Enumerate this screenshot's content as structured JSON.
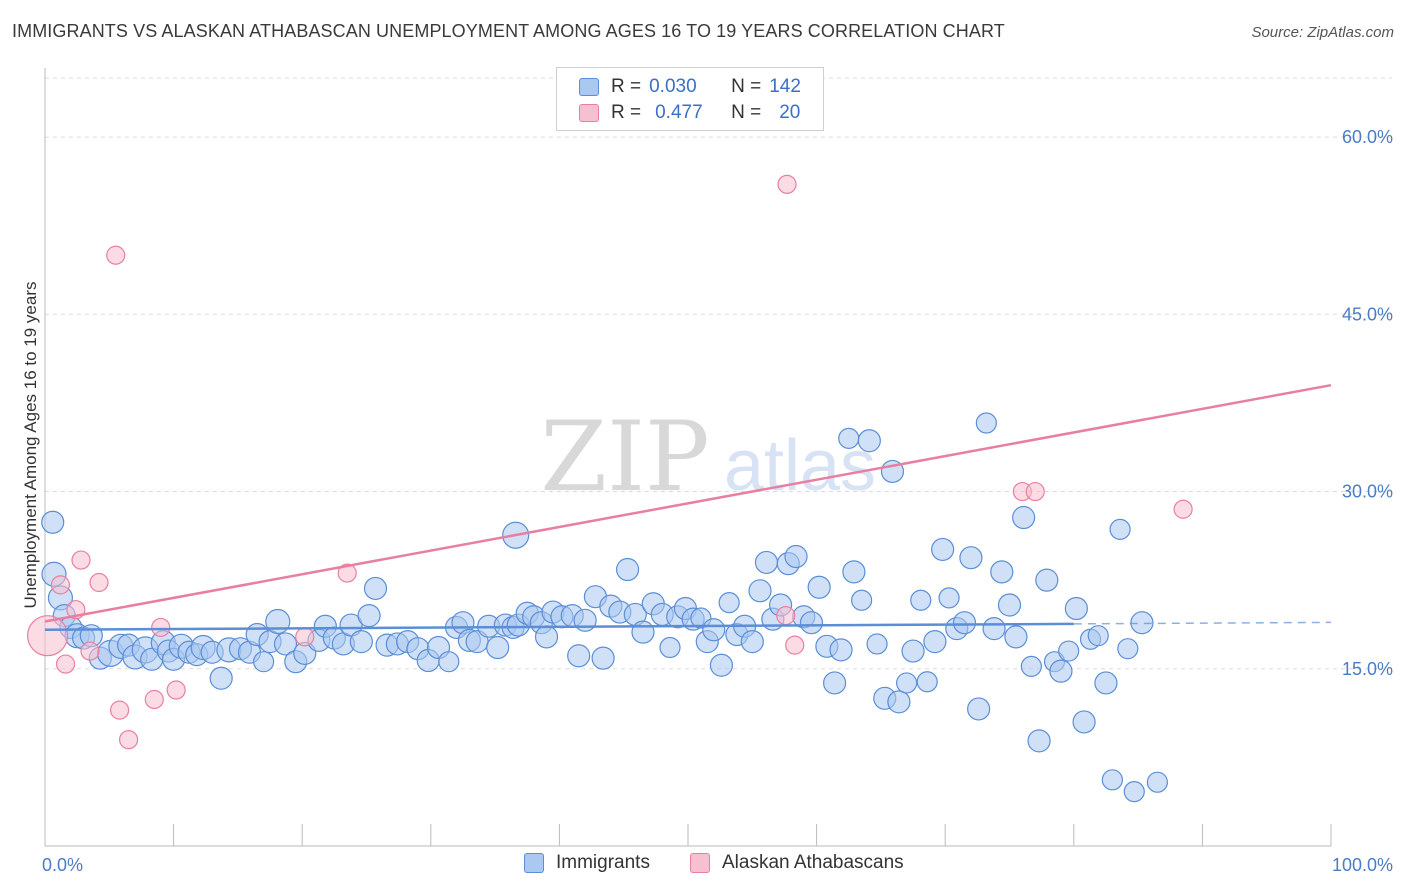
{
  "header": {
    "title": "IMMIGRANTS VS ALASKAN ATHABASCAN UNEMPLOYMENT AMONG AGES 16 TO 19 YEARS CORRELATION CHART",
    "source": "Source: ZipAtlas.com"
  },
  "watermark": {
    "zip": "ZIP",
    "atlas": "atlas"
  },
  "legend": {
    "rows": [
      {
        "r_label": "R =",
        "r_value": "0.030",
        "n_label": "N =",
        "n_value": "142",
        "color": "#aac8f0",
        "border": "#5b8ed6"
      },
      {
        "r_label": "R =",
        "r_value": "0.477",
        "n_label": "N =",
        "n_value": "20",
        "color": "#f7c0d0",
        "border": "#e87fa0"
      }
    ]
  },
  "bottom_legend": {
    "items": [
      {
        "label": "Immigrants",
        "color": "#aac8f0",
        "border": "#5b8ed6"
      },
      {
        "label": "Alaskan Athabascans",
        "color": "#f7c0d0",
        "border": "#e87fa0"
      }
    ]
  },
  "chart_data": {
    "type": "scatter",
    "title": "IMMIGRANTS VS ALASKAN ATHABASCAN UNEMPLOYMENT AMONG AGES 16 TO 19 YEARS CORRELATION CHART",
    "xlabel": "",
    "ylabel": "Unemployment Among Ages 16 to 19 years",
    "xlim": [
      0,
      100
    ],
    "ylim": [
      0,
      65
    ],
    "x_tick_labels": [
      "0.0%",
      "100.0%"
    ],
    "y_ticks": [
      15,
      30,
      45,
      60
    ],
    "y_tick_labels": [
      "15.0%",
      "30.0%",
      "45.0%",
      "60.0%"
    ],
    "grid": "horizontal dashed",
    "legend_position": "top-center",
    "series": [
      {
        "name": "Immigrants",
        "color": "#5b8ed6",
        "fill": "#aac8f0",
        "trend": {
          "x": [
            0,
            80
          ],
          "y": [
            18.3,
            18.8
          ],
          "dashed_extension_to": 100
        },
        "points": [
          [
            0.6,
            27.4
          ],
          [
            0.7,
            23
          ],
          [
            1.2,
            21
          ],
          [
            1.5,
            19.5
          ],
          [
            2,
            18.5
          ],
          [
            2.5,
            17.8
          ],
          [
            3,
            17.6
          ],
          [
            3.6,
            17.8
          ],
          [
            4.3,
            15.9
          ],
          [
            5.1,
            16.3
          ],
          [
            5.9,
            16.9
          ],
          [
            6.5,
            17
          ],
          [
            7,
            16
          ],
          [
            7.8,
            16.6
          ],
          [
            8.3,
            15.8
          ],
          [
            9.2,
            17.2
          ],
          [
            9.6,
            16.5
          ],
          [
            10,
            15.8
          ],
          [
            10.6,
            16.9
          ],
          [
            11.2,
            16.4
          ],
          [
            11.8,
            16.2
          ],
          [
            12.3,
            16.8
          ],
          [
            13,
            16.4
          ],
          [
            13.7,
            14.2
          ],
          [
            14.3,
            16.6
          ],
          [
            15.2,
            16.7
          ],
          [
            15.9,
            16.4
          ],
          [
            16.5,
            17.9
          ],
          [
            17,
            15.6
          ],
          [
            17.5,
            17.3
          ],
          [
            18.1,
            19
          ],
          [
            18.7,
            17.1
          ],
          [
            19.5,
            15.6
          ],
          [
            20.2,
            16.3
          ],
          [
            21.3,
            17.4
          ],
          [
            21.8,
            18.6
          ],
          [
            22.5,
            17.6
          ],
          [
            23.2,
            17.1
          ],
          [
            23.8,
            18.7
          ],
          [
            24.6,
            17.3
          ],
          [
            25.2,
            19.5
          ],
          [
            25.7,
            21.8
          ],
          [
            26.6,
            17
          ],
          [
            27.4,
            17.1
          ],
          [
            28.2,
            17.3
          ],
          [
            29,
            16.7
          ],
          [
            29.8,
            15.7
          ],
          [
            30.6,
            16.8
          ],
          [
            31.4,
            15.6
          ],
          [
            32,
            18.5
          ],
          [
            32.5,
            18.9
          ],
          [
            33,
            17.4
          ],
          [
            33.6,
            17.3
          ],
          [
            34.5,
            18.6
          ],
          [
            35.2,
            16.8
          ],
          [
            35.8,
            18.7
          ],
          [
            36.4,
            18.5
          ],
          [
            36.8,
            18.7
          ],
          [
            37.5,
            19.7
          ],
          [
            38,
            19.4
          ],
          [
            38.6,
            18.9
          ],
          [
            39,
            17.7
          ],
          [
            39.5,
            19.8
          ],
          [
            40.2,
            19.4
          ],
          [
            41,
            19.5
          ],
          [
            41.5,
            16.1
          ],
          [
            42,
            19.1
          ],
          [
            42.8,
            21.1
          ],
          [
            43.4,
            15.9
          ],
          [
            44,
            20.3
          ],
          [
            44.7,
            19.8
          ],
          [
            45.3,
            23.4
          ],
          [
            45.9,
            19.6
          ],
          [
            46.5,
            18.1
          ],
          [
            47.3,
            20.5
          ],
          [
            48,
            19.6
          ],
          [
            48.6,
            16.8
          ],
          [
            49.2,
            19.4
          ],
          [
            49.8,
            20.1
          ],
          [
            50.4,
            19.2
          ],
          [
            51,
            19.3
          ],
          [
            51.5,
            17.3
          ],
          [
            52,
            18.3
          ],
          [
            52.6,
            15.3
          ],
          [
            53.2,
            20.6
          ],
          [
            53.8,
            17.9
          ],
          [
            54.4,
            18.6
          ],
          [
            55,
            17.3
          ],
          [
            55.6,
            21.6
          ],
          [
            56.1,
            24
          ],
          [
            56.6,
            19.2
          ],
          [
            57.2,
            20.4
          ],
          [
            57.8,
            23.9
          ],
          [
            58.4,
            24.5
          ],
          [
            59,
            19.4
          ],
          [
            59.6,
            18.9
          ],
          [
            60.2,
            21.9
          ],
          [
            60.8,
            16.9
          ],
          [
            61.4,
            13.8
          ],
          [
            61.9,
            16.6
          ],
          [
            62.5,
            34.5
          ],
          [
            62.9,
            23.2
          ],
          [
            63.5,
            20.8
          ],
          [
            64.1,
            34.3
          ],
          [
            64.7,
            17.1
          ],
          [
            65.3,
            12.5
          ],
          [
            65.9,
            31.7
          ],
          [
            66.4,
            12.2
          ],
          [
            67,
            13.8
          ],
          [
            67.5,
            16.5
          ],
          [
            68.1,
            20.8
          ],
          [
            68.6,
            13.9
          ],
          [
            69.2,
            17.3
          ],
          [
            69.8,
            25.1
          ],
          [
            70.3,
            21
          ],
          [
            70.9,
            18.4
          ],
          [
            71.5,
            18.9
          ],
          [
            72,
            24.4
          ],
          [
            72.6,
            11.6
          ],
          [
            73.2,
            35.8
          ],
          [
            73.8,
            18.4
          ],
          [
            74.4,
            23.2
          ],
          [
            75,
            20.4
          ],
          [
            75.5,
            17.7
          ],
          [
            76.1,
            27.8
          ],
          [
            76.7,
            15.2
          ],
          [
            77.3,
            8.9
          ],
          [
            77.9,
            22.5
          ],
          [
            78.5,
            15.6
          ],
          [
            79,
            14.8
          ],
          [
            79.6,
            16.5
          ],
          [
            80.2,
            20.1
          ],
          [
            80.8,
            10.5
          ],
          [
            81.3,
            17.5
          ],
          [
            81.9,
            17.8
          ],
          [
            82.5,
            13.8
          ],
          [
            83,
            5.6
          ],
          [
            83.6,
            26.8
          ],
          [
            84.2,
            16.7
          ],
          [
            84.7,
            4.6
          ],
          [
            85.3,
            18.9
          ],
          [
            86.5,
            5.4
          ],
          [
            36.6,
            26.3
          ]
        ],
        "sizes": [
          11,
          12,
          12,
          11,
          11,
          12,
          11,
          11,
          11,
          13,
          12,
          11,
          12,
          13,
          11,
          12,
          11,
          11,
          12,
          11,
          11,
          12,
          11,
          11,
          12,
          11,
          11,
          11,
          10,
          11,
          12,
          11,
          11,
          11,
          11,
          11,
          11,
          11,
          11,
          11,
          11,
          11,
          11,
          11,
          11,
          11,
          11,
          11,
          10,
          11,
          11,
          11,
          11,
          11,
          11,
          11,
          11,
          11,
          11,
          11,
          11,
          11,
          11,
          11,
          11,
          11,
          11,
          11,
          11,
          11,
          11,
          11,
          11,
          11,
          11,
          11,
          10,
          11,
          11,
          11,
          10,
          11,
          11,
          11,
          10,
          11,
          11,
          11,
          11,
          11,
          11,
          11,
          11,
          11,
          11,
          11,
          11,
          11,
          11,
          11,
          10,
          11,
          10,
          11,
          10,
          11,
          11,
          11,
          10,
          11,
          10,
          10,
          11,
          11,
          10,
          11,
          11,
          11,
          11,
          10,
          11,
          11,
          11,
          11,
          11,
          10,
          11,
          11,
          10,
          11,
          10,
          11,
          11,
          10,
          10,
          11,
          10,
          10,
          10,
          10,
          11,
          10,
          13
        ]
      },
      {
        "name": "Alaskan Athabascans",
        "color": "#e87fa0",
        "fill": "#f7c0d0",
        "trend": {
          "x": [
            0,
            100
          ],
          "y": [
            19,
            39
          ]
        },
        "points": [
          [
            0.2,
            17.8
          ],
          [
            1.2,
            22.1
          ],
          [
            1.6,
            15.4
          ],
          [
            2.4,
            20
          ],
          [
            2.8,
            24.2
          ],
          [
            3.5,
            16.5
          ],
          [
            4.2,
            22.3
          ],
          [
            5.5,
            50
          ],
          [
            5.8,
            11.5
          ],
          [
            6.5,
            9
          ],
          [
            8.5,
            12.4
          ],
          [
            9,
            18.5
          ],
          [
            10.2,
            13.2
          ],
          [
            20.2,
            17.7
          ],
          [
            23.5,
            23.1
          ],
          [
            58.3,
            17
          ],
          [
            57.6,
            19.5
          ],
          [
            57.7,
            56
          ],
          [
            76,
            30
          ],
          [
            77,
            30
          ],
          [
            88.5,
            28.5
          ]
        ],
        "sizes": [
          20,
          9,
          9,
          9,
          9,
          9,
          9,
          9,
          9,
          9,
          9,
          9,
          9,
          9,
          9,
          9,
          9,
          9,
          9,
          9,
          9
        ]
      }
    ]
  }
}
